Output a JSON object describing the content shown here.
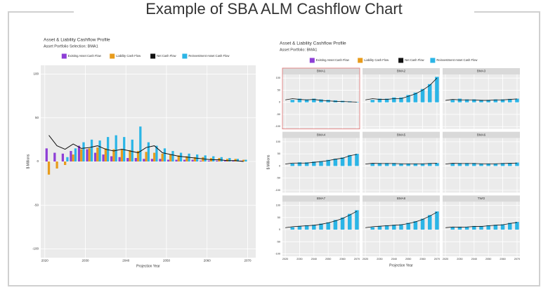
{
  "title": "Example of SBA ALM Cashflow Chart",
  "chart_data": [
    {
      "type": "bar",
      "title": "Asset & Liability Cashflow Profile",
      "subtitle": "Asset Portfolio Selection: BMA1",
      "x_label": "Projection Year",
      "y_label": "$ Millions",
      "x": [
        2021,
        2023,
        2025,
        2027,
        2029,
        2031,
        2033,
        2035,
        2037,
        2039,
        2041,
        2043,
        2045,
        2047,
        2049,
        2051,
        2053,
        2055,
        2057,
        2059,
        2061,
        2063,
        2065,
        2067,
        2069
      ],
      "xlim": [
        2019,
        2072
      ],
      "xticks": [
        2020,
        2030,
        2040,
        2050,
        2060,
        2070
      ],
      "ylim": [
        -110,
        110
      ],
      "yticks": [
        -100,
        -50,
        0,
        50,
        100
      ],
      "grid": true,
      "series": [
        {
          "name": "Existing Asset Cash Flow",
          "color": "#8e3fd6",
          "kind": "bar",
          "values": [
            15,
            10,
            9,
            12,
            18,
            14,
            10,
            8,
            6,
            5,
            4,
            4,
            3,
            3,
            3,
            2,
            2,
            2,
            2,
            1,
            1,
            1,
            1,
            1,
            1
          ]
        },
        {
          "name": "Liability Cash Flow",
          "color": "#e89c1c",
          "kind": "bar",
          "values": [
            -15,
            -8,
            -4,
            8,
            14,
            15,
            16,
            15,
            14,
            14,
            13,
            12,
            11,
            10,
            9,
            8,
            7,
            6,
            5,
            5,
            4,
            4,
            3,
            3,
            2
          ]
        },
        {
          "name": "Net Cash Flow",
          "color": "#111111",
          "kind": "line",
          "values": [
            30,
            18,
            14,
            20,
            15,
            16,
            18,
            14,
            12,
            14,
            12,
            10,
            16,
            18,
            10,
            8,
            6,
            5,
            4,
            3,
            2,
            2,
            1,
            1,
            0
          ]
        },
        {
          "name": "Reinvestment Asset Cash Flow",
          "color": "#2bb5e6",
          "kind": "bar",
          "values": [
            0,
            0,
            5,
            15,
            22,
            25,
            24,
            28,
            30,
            28,
            25,
            40,
            22,
            18,
            15,
            12,
            10,
            9,
            8,
            7,
            6,
            5,
            4,
            3,
            2
          ]
        }
      ]
    },
    {
      "type": "small-multiples",
      "title": "Asset & Liability Cashflow Profile",
      "subtitle": "Asset Portfolio: BMA1",
      "x_label": "Projection Year",
      "y_label": "$ Millions",
      "x": [
        2020,
        2025,
        2030,
        2035,
        2040,
        2045,
        2050,
        2055,
        2060,
        2065,
        2070
      ],
      "xlim": [
        2018,
        2072
      ],
      "xticks": [
        2020,
        2030,
        2040,
        2050,
        2060,
        2070
      ],
      "ylim": [
        -110,
        115
      ],
      "yticks": [
        -100,
        -50,
        0,
        50,
        100
      ],
      "grid": true,
      "highlight": "BMA1",
      "series": [
        {
          "name": "Existing Asset Cash Flow",
          "color": "#8e3fd6"
        },
        {
          "name": "Liability Cash Flow",
          "color": "#e89c1c"
        },
        {
          "name": "Net Cash Flow",
          "color": "#111111"
        },
        {
          "name": "Reinvestment Asset Cash Flow",
          "color": "#2bb5e6"
        }
      ],
      "panels": [
        {
          "title": "BMA1",
          "bars": [
            0,
            10,
            15,
            12,
            15,
            12,
            10,
            8,
            6,
            4,
            2
          ],
          "line": [
            10,
            15,
            12,
            10,
            12,
            8,
            6,
            4,
            3,
            2,
            1
          ]
        },
        {
          "title": "BMA2",
          "bars": [
            0,
            10,
            15,
            15,
            20,
            20,
            30,
            40,
            55,
            75,
            105
          ],
          "line": [
            10,
            15,
            12,
            12,
            15,
            15,
            25,
            35,
            50,
            70,
            100
          ]
        },
        {
          "title": "BMA3",
          "bars": [
            0,
            10,
            15,
            12,
            12,
            10,
            10,
            12,
            12,
            14,
            15
          ],
          "line": [
            8,
            12,
            10,
            10,
            10,
            8,
            8,
            10,
            10,
            12,
            14
          ]
        },
        {
          "title": "BMA4",
          "bars": [
            0,
            10,
            15,
            15,
            18,
            20,
            25,
            30,
            35,
            45,
            50
          ],
          "line": [
            8,
            12,
            12,
            12,
            15,
            18,
            22,
            28,
            32,
            42,
            48
          ]
        },
        {
          "title": "BMA5",
          "bars": [
            0,
            10,
            12,
            12,
            12,
            10,
            10,
            10,
            10,
            12,
            12
          ],
          "line": [
            8,
            11,
            10,
            10,
            10,
            9,
            9,
            9,
            9,
            10,
            11
          ]
        },
        {
          "title": "BMA6",
          "bars": [
            0,
            10,
            12,
            12,
            12,
            10,
            10,
            10,
            12,
            12,
            14
          ],
          "line": [
            8,
            11,
            10,
            10,
            10,
            9,
            9,
            9,
            10,
            11,
            12
          ]
        },
        {
          "title": "BMA7",
          "bars": [
            0,
            10,
            15,
            18,
            20,
            25,
            30,
            40,
            50,
            65,
            80
          ],
          "line": [
            8,
            12,
            14,
            16,
            18,
            22,
            28,
            36,
            46,
            60,
            76
          ]
        },
        {
          "title": "BMA8",
          "bars": [
            0,
            10,
            15,
            18,
            20,
            22,
            28,
            35,
            45,
            60,
            75
          ],
          "line": [
            8,
            12,
            14,
            16,
            18,
            20,
            25,
            32,
            42,
            56,
            72
          ]
        },
        {
          "title": "TWO",
          "bars": [
            0,
            10,
            12,
            12,
            15,
            15,
            18,
            20,
            22,
            28,
            32
          ],
          "line": [
            8,
            11,
            10,
            11,
            13,
            13,
            16,
            18,
            20,
            25,
            30
          ]
        }
      ]
    }
  ]
}
